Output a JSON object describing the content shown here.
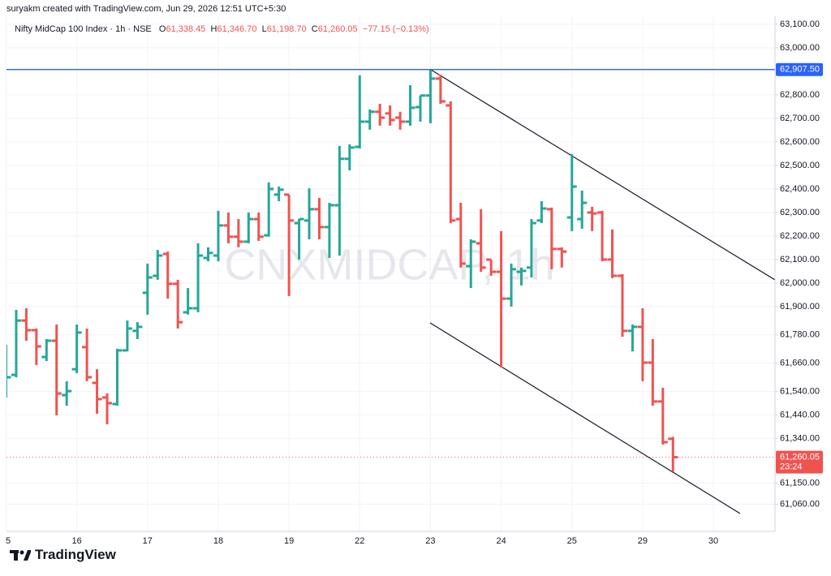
{
  "author": "suryakm created with TradingView.com, Jun 29, 2026 12:51 UTC+5:30",
  "logo": "TradingView",
  "chart_data": {
    "type": "ohlc",
    "title": "Nifty MidCap 100 Index · 1h · NSE",
    "watermark": "CNXMIDCAP, 1h",
    "header": {
      "open_label": "O",
      "open": "61,338.45",
      "high_label": "H",
      "high": "61,346.70",
      "low_label": "L",
      "low": "61,198.70",
      "close_label": "C",
      "close": "61,260.05",
      "change": "−77.15 (−0.13%)"
    },
    "up_color": "#26a69a",
    "down_color": "#ef5350",
    "grid": true,
    "xlim": [
      -0.96,
      75.1
    ],
    "ylim": [
      60945,
      63134
    ],
    "xticks": [
      {
        "value": -1,
        "label": "5"
      },
      {
        "value": 6,
        "label": "16"
      },
      {
        "value": 13,
        "label": "17"
      },
      {
        "value": 20,
        "label": "18"
      },
      {
        "value": 27,
        "label": "19"
      },
      {
        "value": 34,
        "label": "22"
      },
      {
        "value": 41,
        "label": "23"
      },
      {
        "value": 48,
        "label": "24"
      },
      {
        "value": 55,
        "label": "25"
      },
      {
        "value": 62,
        "label": "29"
      },
      {
        "value": 69,
        "label": "30"
      }
    ],
    "yticks": [
      {
        "value": 63100,
        "label": "63,100.00"
      },
      {
        "value": 63000,
        "label": "63,000.00"
      },
      {
        "value": 62800,
        "label": "62,800.00"
      },
      {
        "value": 62700,
        "label": "62,700.00"
      },
      {
        "value": 62600,
        "label": "62,600.00"
      },
      {
        "value": 62500,
        "label": "62,500.00"
      },
      {
        "value": 62400,
        "label": "62,400.00"
      },
      {
        "value": 62300,
        "label": "62,300.00"
      },
      {
        "value": 62200,
        "label": "62,200.00"
      },
      {
        "value": 62100,
        "label": "62,100.00"
      },
      {
        "value": 62000,
        "label": "62,000.00"
      },
      {
        "value": 61900,
        "label": "61,900.00"
      },
      {
        "value": 61780,
        "label": "61,780.00"
      },
      {
        "value": 61660,
        "label": "61,660.00"
      },
      {
        "value": 61540,
        "label": "61,540.00"
      },
      {
        "value": 61440,
        "label": "61,440.00"
      },
      {
        "value": 61340,
        "label": "61,340.00"
      },
      {
        "value": 61150,
        "label": "61,150.00"
      },
      {
        "value": 61060,
        "label": "61,060.00"
      }
    ],
    "price_line": {
      "value": 62907.5,
      "label": "62,907.50",
      "color": "#2962ff"
    },
    "last_price": {
      "value": 61260.05,
      "label": "61,260.05",
      "countdown": "23:24",
      "color": "#ef5350"
    },
    "x": [
      -1,
      0,
      1,
      2,
      3,
      4,
      5,
      6,
      7,
      8,
      9,
      10,
      11,
      12,
      13,
      14,
      15,
      16,
      17,
      18,
      19,
      20,
      21,
      22,
      23,
      24,
      25,
      26,
      27,
      28,
      29,
      30,
      31,
      32,
      33,
      34,
      35,
      36,
      37,
      38,
      39,
      40,
      41,
      42,
      43,
      44,
      45,
      46,
      47,
      48,
      49,
      50,
      51,
      52,
      53,
      54,
      55,
      56,
      57,
      58,
      59,
      60,
      61,
      62,
      63,
      64,
      65
    ],
    "open": [
      61590,
      61610,
      61841,
      61800,
      61686,
      61755,
      61524,
      61634,
      61728,
      61576,
      61514,
      61486,
      61714,
      61797,
      61959,
      62031,
      62124,
      61997,
      61876,
      61893,
      62107,
      62117,
      62245,
      62197,
      62176,
      62272,
      62203,
      62376,
      62376,
      62255,
      62266,
      62314,
      62238,
      62331,
      62528,
      62579,
      62686,
      62728,
      62721,
      62703,
      62686,
      62748,
      62797,
      62869,
      62755,
      62272,
      62072,
      62169,
      62100,
      62048,
      61934,
      62048,
      62066,
      62266,
      62314,
      62145,
      62279,
      62272,
      62300,
      62300,
      62100,
      62031,
      61797,
      61814,
      61662,
      61497,
      61338.45
    ],
    "high": [
      61738,
      61886,
      61893,
      61807,
      61762,
      61824,
      61583,
      61824,
      61807,
      61634,
      61531,
      61721,
      61841,
      61834,
      62083,
      62141,
      62134,
      62014,
      61979,
      62169,
      62152,
      62307,
      62300,
      62272,
      62300,
      62300,
      62428,
      62410,
      62376,
      62272,
      62403,
      62362,
      62341,
      62583,
      62590,
      62883,
      62738,
      62762,
      62755,
      62728,
      62841,
      62797,
      62907.5,
      62886,
      62772,
      62341,
      62186,
      62314,
      62100,
      62221,
      62083,
      62066,
      62272,
      62348,
      62321,
      62152,
      62548,
      62393,
      62324,
      62307,
      62228,
      62038,
      61824,
      61893,
      61762,
      61555,
      61346.7
    ],
    "low": [
      61514,
      61600,
      61755,
      61652,
      61669,
      61438,
      61479,
      61617,
      61583,
      61445,
      61400,
      61479,
      61710,
      61762,
      61866,
      62014,
      61934,
      61807,
      61866,
      61876,
      62093,
      62093,
      62169,
      62152,
      62169,
      62179,
      62197,
      62348,
      61945,
      62100,
      62186,
      62186,
      62107,
      62117,
      62479,
      62572,
      62652,
      62669,
      62669,
      62652,
      62669,
      62686,
      62679,
      62762,
      62255,
      62066,
      61979,
      62048,
      62031,
      61641,
      61900,
      61990,
      62024,
      62255,
      62059,
      62066,
      62221,
      62231,
      62221,
      62093,
      62021,
      61772,
      61710,
      61583,
      61479,
      61314,
      61198.7
    ],
    "close": [
      61600,
      61841,
      61800,
      61731,
      61755,
      61531,
      61541,
      61790,
      61600,
      61507,
      61490,
      61714,
      61807,
      61814,
      62024,
      62117,
      61997,
      61834,
      61893,
      62117,
      62128,
      62245,
      62197,
      62176,
      62272,
      62197,
      62400,
      62397,
      62266,
      62272,
      62314,
      62238,
      62331,
      62528,
      62576,
      62686,
      62728,
      62703,
      62693,
      62686,
      62745,
      62797,
      62869,
      62772,
      62266,
      62083,
      62176,
      62066,
      62048,
      61934,
      62059,
      62052,
      62255,
      62317,
      62145,
      62134,
      62410,
      62341,
      62296,
      62100,
      62031,
      61797,
      61814,
      61662,
      61497,
      61324,
      61260.05
    ]
  }
}
